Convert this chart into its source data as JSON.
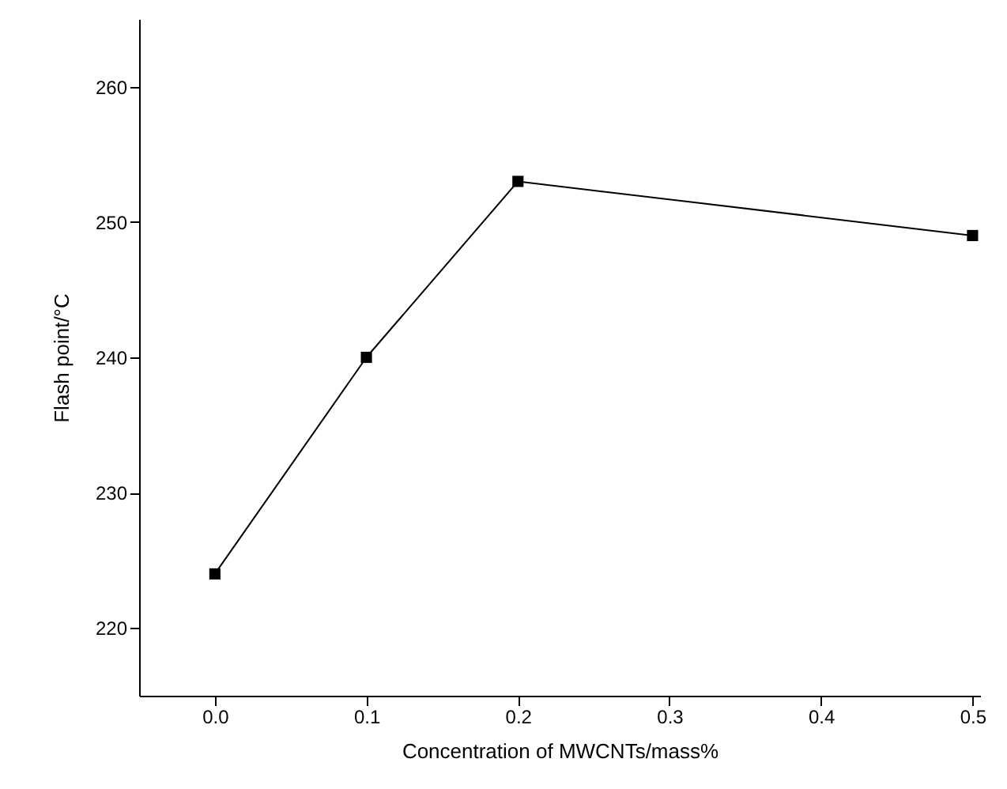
{
  "chart_data": {
    "type": "line",
    "xlabel": "Concentration of MWCNTs/mass%",
    "ylabel": "Flash point/°C",
    "x": [
      0,
      0.1,
      0.2,
      0.5
    ],
    "series": [
      {
        "color": "#000000",
        "values": [
          224,
          240,
          253,
          249
        ]
      }
    ],
    "xlim": [
      -0.05,
      0.505
    ],
    "xticks": [
      {
        "value": 0,
        "label": "0.0"
      },
      0.1,
      0.2,
      0.3,
      0.4,
      0.5
    ],
    "ylim": [
      215,
      265
    ],
    "yticks": [
      220,
      230,
      240,
      250,
      260
    ],
    "marker": "square",
    "line_style": "solid",
    "grid": false
  }
}
